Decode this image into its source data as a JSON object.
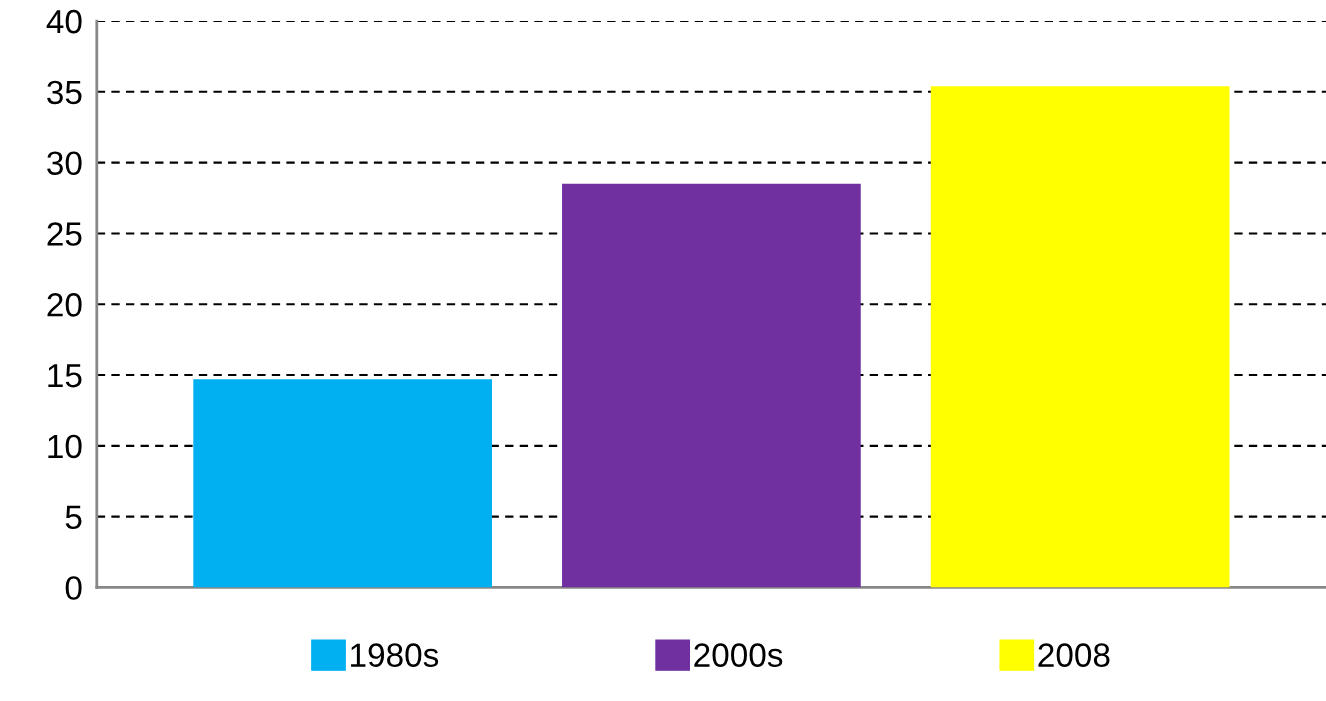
{
  "chart_data": {
    "type": "bar",
    "categories": [
      null
    ],
    "series": [
      {
        "name": "1980s",
        "color": "#00b0f0",
        "values": [
          14.7
        ]
      },
      {
        "name": "2000s",
        "color": "#7030a0",
        "values": [
          28.5
        ]
      },
      {
        "name": "2008",
        "color": "#ffff00",
        "values": [
          35.4
        ]
      }
    ],
    "ylim": [
      0,
      40
    ],
    "yticks": [
      0,
      5,
      10,
      15,
      20,
      25,
      30,
      35,
      40
    ],
    "grid": "y",
    "legend": "bottom"
  }
}
